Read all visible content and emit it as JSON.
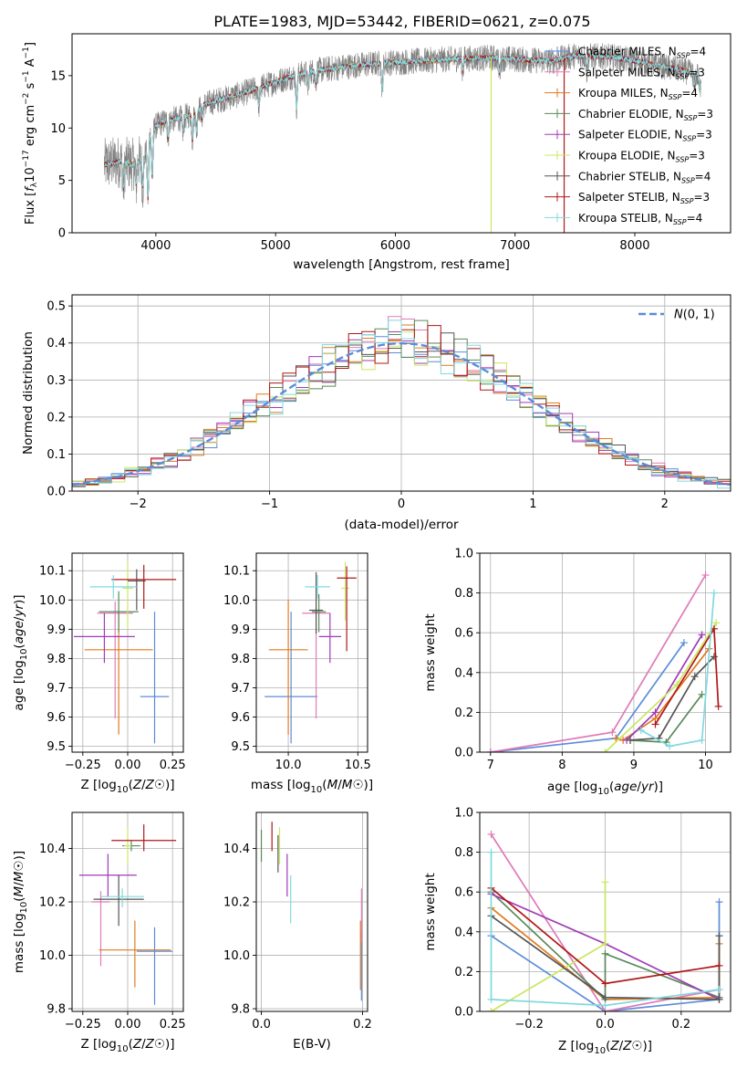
{
  "title": "PLATE=1983, MJD=53442, FIBERID=0621, z=0.075",
  "colors": {
    "Chabrier MILES": "#5b8cd8",
    "Salpeter MILES": "#e07ab8",
    "Kroupa MILES": "#e07a1f",
    "Chabrier ELODIE": "#5a8a5a",
    "Salpeter ELODIE": "#a03ab8",
    "Kroupa ELODIE": "#c8e860",
    "Chabrier STELIB": "#555555",
    "Salpeter STELIB": "#b01818",
    "Kroupa STELIB": "#80d8e0",
    "data": "#808080",
    "normal": "#5b8cd8"
  },
  "chart_data": [
    {
      "type": "line",
      "panel": "spectrum",
      "xlabel": "wavelength [Angstrom, rest frame]",
      "ylabel": "Flux [fλ10⁻¹⁷ erg cm⁻² s⁻¹ A⁻¹]",
      "xlim": [
        3300,
        8800
      ],
      "ylim": [
        0,
        19
      ],
      "xticks": [
        4000,
        5000,
        6000,
        7000,
        8000
      ],
      "yticks": [
        0,
        5,
        10,
        15
      ],
      "grid": false,
      "legend_position": "top-right",
      "legend": [
        {
          "prefix": "Chabrier MILES, N",
          "sub": "SSP",
          "suffix": "=4"
        },
        {
          "prefix": "Salpeter MILES, N",
          "sub": "SSP",
          "suffix": "=3"
        },
        {
          "prefix": "Kroupa MILES, N",
          "sub": "SSP",
          "suffix": "=4"
        },
        {
          "prefix": "Chabrier ELODIE, N",
          "sub": "SSP",
          "suffix": "=3"
        },
        {
          "prefix": "Salpeter ELODIE, N",
          "sub": "SSP",
          "suffix": "=3"
        },
        {
          "prefix": "Kroupa ELODIE, N",
          "sub": "SSP",
          "suffix": "=3"
        },
        {
          "prefix": "Chabrier STELIB, N",
          "sub": "SSP",
          "suffix": "=4"
        },
        {
          "prefix": "Salpeter STELIB, N",
          "sub": "SSP",
          "suffix": "=3"
        },
        {
          "prefix": "Kroupa STELIB, N",
          "sub": "SSP",
          "suffix": "=4"
        }
      ],
      "continuum": [
        [
          3570,
          6.5
        ],
        [
          3700,
          6.8
        ],
        [
          3800,
          6.5
        ],
        [
          3900,
          7.0
        ],
        [
          3950,
          9.5
        ],
        [
          4000,
          10.2
        ],
        [
          4100,
          10.8
        ],
        [
          4200,
          10.9
        ],
        [
          4300,
          11.3
        ],
        [
          4400,
          12.2
        ],
        [
          4500,
          12.6
        ],
        [
          4700,
          13.2
        ],
        [
          4900,
          14.0
        ],
        [
          5100,
          14.8
        ],
        [
          5300,
          15.4
        ],
        [
          5600,
          15.9
        ],
        [
          5900,
          16.2
        ],
        [
          6200,
          16.4
        ],
        [
          6500,
          16.6
        ],
        [
          6800,
          16.7
        ],
        [
          7100,
          16.5
        ],
        [
          7300,
          16.4
        ],
        [
          7500,
          16.9
        ],
        [
          7800,
          16.8
        ],
        [
          8100,
          16.2
        ],
        [
          8400,
          15.5
        ],
        [
          8550,
          15.0
        ]
      ],
      "absorption_lines": [
        [
          3730,
          2.5
        ],
        [
          3835,
          2.0
        ],
        [
          3890,
          2.5
        ],
        [
          3934,
          5.5
        ],
        [
          3969,
          4.5
        ],
        [
          4102,
          1.8
        ],
        [
          4227,
          1.5
        ],
        [
          4305,
          2.5
        ],
        [
          4340,
          2.0
        ],
        [
          4384,
          1.2
        ],
        [
          4861,
          1.8
        ],
        [
          5175,
          3.0
        ],
        [
          5270,
          1.5
        ],
        [
          5335,
          1.2
        ],
        [
          5890,
          2.5
        ],
        [
          6563,
          1.2
        ],
        [
          6870,
          1.5
        ],
        [
          7600,
          1.5
        ],
        [
          8498,
          1.2
        ],
        [
          8542,
          1.5
        ],
        [
          8662,
          1.4
        ]
      ],
      "outliers": [
        {
          "series": "Kroupa ELODIE",
          "x": 6800,
          "y": 0
        },
        {
          "series": "Salpeter STELIB",
          "x": 7410,
          "y": 0
        }
      ]
    },
    {
      "type": "histogram",
      "panel": "residuals",
      "xlabel": "(data-model)/error",
      "ylabel": "Normed distribution",
      "xlim": [
        -2.5,
        2.5
      ],
      "ylim": [
        0,
        0.53
      ],
      "xticks": [
        -2,
        -1,
        0,
        1,
        2
      ],
      "yticks": [
        0.0,
        0.1,
        0.2,
        0.3,
        0.4,
        0.5
      ],
      "grid": true,
      "legend_position": "top-right",
      "reference_curve": {
        "name": "N(0,1)",
        "sigma": 1.0,
        "amplitude": 0.399
      },
      "bin_width": 0.1,
      "bin_start": -2.5
    },
    {
      "type": "errorbar",
      "panel": "age-vs-Z",
      "xlabel": "Z [log10(Z/Z☉)]",
      "ylabel": "age [log10(age/yr)]",
      "xlim": [
        -0.31,
        0.31
      ],
      "ylim": [
        9.48,
        10.16
      ],
      "xticks": [
        -0.25,
        0.0,
        0.25
      ],
      "yticks": [
        9.5,
        9.6,
        9.7,
        9.8,
        9.9,
        10.0,
        10.1
      ],
      "points": [
        {
          "series": "Chabrier MILES",
          "x": 0.15,
          "xerr": 0.08,
          "y": 9.67,
          "yerr": [
            0.16,
            0.29
          ]
        },
        {
          "series": "Salpeter MILES",
          "x": -0.07,
          "xerr": 0.1,
          "y": 9.955,
          "yerr": [
            0.36,
            0.04
          ]
        },
        {
          "series": "Kroupa MILES",
          "x": -0.05,
          "xerr": 0.19,
          "y": 9.83,
          "yerr": [
            0.29,
            0.13
          ]
        },
        {
          "series": "Chabrier ELODIE",
          "x": -0.05,
          "xerr": 0.11,
          "y": 9.96,
          "yerr": [
            0.07,
            0.07
          ]
        },
        {
          "series": "Salpeter ELODIE",
          "x": -0.13,
          "xerr": 0.17,
          "y": 9.875,
          "yerr": [
            0.09,
            0.08
          ]
        },
        {
          "series": "Kroupa ELODIE",
          "x": 0.0,
          "xerr": 0.03,
          "y": 10.04,
          "yerr": [
            0.14,
            0.09
          ]
        },
        {
          "series": "Chabrier STELIB",
          "x": 0.05,
          "xerr": 0.05,
          "y": 10.065,
          "yerr": [
            0.1,
            0.04
          ]
        },
        {
          "series": "Salpeter STELIB",
          "x": 0.09,
          "xerr": 0.18,
          "y": 10.07,
          "yerr": [
            0.1,
            0.05
          ]
        },
        {
          "series": "Kroupa STELIB",
          "x": -0.08,
          "xerr": 0.13,
          "y": 10.045,
          "yerr": [
            0.04,
            0.04
          ]
        }
      ]
    },
    {
      "type": "errorbar",
      "panel": "age-vs-mass",
      "xlabel": "mass [log10(M/M☉)]",
      "xlim": [
        9.77,
        10.57
      ],
      "ylim": [
        9.48,
        10.16
      ],
      "xticks": [
        10.0,
        10.5
      ],
      "yticks": [
        9.5,
        9.6,
        9.7,
        9.8,
        9.9,
        10.0,
        10.1
      ],
      "points": [
        {
          "series": "Chabrier MILES",
          "x": 10.02,
          "xerr": 0.19,
          "y": 9.67,
          "yerr": [
            0.16,
            0.29
          ]
        },
        {
          "series": "Salpeter MILES",
          "x": 10.2,
          "xerr": 0.1,
          "y": 9.955,
          "yerr": [
            0.36,
            0.04
          ]
        },
        {
          "series": "Kroupa MILES",
          "x": 10.0,
          "xerr": 0.14,
          "y": 9.83,
          "yerr": [
            0.29,
            0.17
          ]
        },
        {
          "series": "Chabrier ELODIE",
          "x": 10.22,
          "xerr": 0.05,
          "y": 9.96,
          "yerr": [
            0.07,
            0.06
          ]
        },
        {
          "series": "Salpeter ELODIE",
          "x": 10.3,
          "xerr": 0.08,
          "y": 9.875,
          "yerr": [
            0.09,
            0.08
          ]
        },
        {
          "series": "Kroupa ELODIE",
          "x": 10.41,
          "xerr": 0.03,
          "y": 10.04,
          "yerr": [
            0.11,
            0.09
          ]
        },
        {
          "series": "Chabrier STELIB",
          "x": 10.2,
          "xerr": 0.05,
          "y": 9.965,
          "yerr": [
            0.08,
            0.13
          ]
        },
        {
          "series": "Salpeter STELIB",
          "x": 10.42,
          "xerr": 0.07,
          "y": 10.075,
          "yerr": [
            0.25,
            0.04
          ]
        },
        {
          "series": "Kroupa STELIB",
          "x": 10.21,
          "xerr": 0.09,
          "y": 10.045,
          "yerr": [
            0.04,
            0.04
          ]
        }
      ]
    },
    {
      "type": "line",
      "panel": "weight-vs-age",
      "xlabel": "age [log10(age/yr)]",
      "ylabel": "mass weight",
      "xlim": [
        6.85,
        10.35
      ],
      "ylim": [
        0,
        1.0
      ],
      "xticks": [
        7,
        8,
        9,
        10
      ],
      "yticks": [
        0.0,
        0.2,
        0.4,
        0.6,
        0.8,
        1.0
      ],
      "grid": true,
      "series": [
        {
          "name": "Chabrier MILES",
          "x": [
            7.0,
            8.75,
            9.7
          ],
          "y": [
            0.0,
            0.07,
            0.55
          ]
        },
        {
          "name": "Salpeter MILES",
          "x": [
            7.0,
            8.7,
            10.0
          ],
          "y": [
            0.0,
            0.1,
            0.89
          ]
        },
        {
          "name": "Kroupa MILES",
          "x": [
            8.75,
            8.85,
            9.3,
            10.05
          ],
          "y": [
            0.07,
            0.06,
            0.17,
            0.52
          ]
        },
        {
          "name": "Chabrier ELODIE",
          "x": [
            8.95,
            9.45,
            9.95
          ],
          "y": [
            0.06,
            0.05,
            0.29
          ]
        },
        {
          "name": "Salpeter ELODIE",
          "x": [
            8.9,
            9.3,
            9.95
          ],
          "y": [
            0.06,
            0.2,
            0.59
          ]
        },
        {
          "name": "Kroupa ELODIE",
          "x": [
            8.6,
            9.6,
            10.15
          ],
          "y": [
            0.0,
            0.34,
            0.65
          ]
        },
        {
          "name": "Chabrier STELIB",
          "x": [
            8.95,
            9.35,
            9.85,
            10.12
          ],
          "y": [
            0.06,
            0.07,
            0.38,
            0.48
          ]
        },
        {
          "name": "Salpeter STELIB",
          "x": [
            9.3,
            10.12,
            10.18
          ],
          "y": [
            0.14,
            0.62,
            0.23
          ]
        },
        {
          "name": "Kroupa STELIB",
          "x": [
            9.1,
            9.5,
            9.95,
            10.12
          ],
          "y": [
            0.11,
            0.03,
            0.06,
            0.8
          ]
        }
      ]
    },
    {
      "type": "errorbar",
      "panel": "mass-vs-Z",
      "xlabel": "Z [log10(Z/Z☉)]",
      "ylabel": "mass [log10(M/M☉)]",
      "xlim": [
        -0.31,
        0.31
      ],
      "ylim": [
        9.79,
        10.535
      ],
      "xticks": [
        -0.25,
        0.0,
        0.25
      ],
      "yticks": [
        9.8,
        10.0,
        10.2,
        10.4
      ],
      "points": [
        {
          "series": "Chabrier MILES",
          "x": 0.15,
          "xerr": 0.1,
          "y": 10.015,
          "yerr": [
            0.2,
            0.09
          ]
        },
        {
          "series": "Salpeter MILES",
          "x": -0.15,
          "xerr": 0.05,
          "y": 10.2,
          "yerr": [
            0.24,
            0.04
          ]
        },
        {
          "series": "Kroupa MILES",
          "x": 0.04,
          "xerr": 0.2,
          "y": 10.02,
          "yerr": [
            0.14,
            0.11
          ]
        },
        {
          "series": "Chabrier ELODIE",
          "x": 0.02,
          "xerr": 0.05,
          "y": 10.41,
          "yerr": [
            0.02,
            0.02
          ]
        },
        {
          "series": "Salpeter ELODIE",
          "x": -0.11,
          "xerr": 0.16,
          "y": 10.3,
          "yerr": [
            0.08,
            0.08
          ]
        },
        {
          "series": "Kroupa ELODIE",
          "x": 0.0,
          "xerr": 0.02,
          "y": 10.41,
          "yerr": [
            0.07,
            0.07
          ]
        },
        {
          "series": "Chabrier STELIB",
          "x": -0.05,
          "xerr": 0.14,
          "y": 10.21,
          "yerr": [
            0.1,
            0.09
          ]
        },
        {
          "series": "Salpeter STELIB",
          "x": 0.09,
          "xerr": 0.18,
          "y": 10.43,
          "yerr": [
            0.04,
            0.06
          ]
        },
        {
          "series": "Kroupa STELIB",
          "x": -0.03,
          "xerr": 0.12,
          "y": 10.22,
          "yerr": [
            0.04,
            0.03
          ]
        }
      ]
    },
    {
      "type": "errorbar",
      "panel": "mass-vs-EBV",
      "xlabel": "E(B-V)",
      "xlim": [
        -0.01,
        0.21
      ],
      "ylim": [
        9.79,
        10.535
      ],
      "xticks": [
        0.0,
        0.2
      ],
      "yticks": [
        9.8,
        10.0,
        10.2,
        10.4
      ],
      "points": [
        {
          "series": "Chabrier MILES",
          "x": 0.198,
          "y": 10.0,
          "yerr": [
            0.17,
            0.09
          ]
        },
        {
          "series": "Salpeter MILES",
          "x": 0.198,
          "y": 10.15,
          "yerr": [
            0.1,
            0.1
          ]
        },
        {
          "series": "Kroupa MILES",
          "x": 0.196,
          "y": 10.02,
          "yerr": [
            0.15,
            0.11
          ]
        },
        {
          "series": "Chabrier ELODIE",
          "x": 0.0,
          "y": 10.41,
          "yerr": [
            0.06,
            0.06
          ]
        },
        {
          "series": "Salpeter ELODIE",
          "x": 0.051,
          "y": 10.3,
          "yerr": [
            0.08,
            0.08
          ]
        },
        {
          "series": "Kroupa ELODIE",
          "x": 0.036,
          "y": 10.41,
          "yerr": [
            0.07,
            0.07
          ]
        },
        {
          "series": "Chabrier STELIB",
          "x": 0.033,
          "y": 10.38,
          "yerr": [
            0.07,
            0.07
          ]
        },
        {
          "series": "Salpeter STELIB",
          "x": 0.021,
          "y": 10.43,
          "yerr": [
            0.04,
            0.07
          ]
        },
        {
          "series": "Kroupa STELIB",
          "x": 0.058,
          "y": 10.21,
          "yerr": [
            0.09,
            0.09
          ]
        }
      ]
    },
    {
      "type": "line",
      "panel": "weight-vs-Z",
      "xlabel": "Z [log10(Z/Z☉)]",
      "ylabel": "mass weight",
      "xlim": [
        -0.33,
        0.33
      ],
      "ylim": [
        0,
        1.0
      ],
      "xticks": [
        -0.2,
        0.0,
        0.2
      ],
      "yticks": [
        0.0,
        0.2,
        0.4,
        0.6,
        0.8,
        1.0
      ],
      "grid": true,
      "series": [
        {
          "name": "Chabrier MILES",
          "x": [
            -0.3,
            0.0,
            0.3,
            0.3
          ],
          "y": [
            0.38,
            0.0,
            0.06,
            0.55
          ]
        },
        {
          "name": "Salpeter MILES",
          "x": [
            -0.3,
            0.0,
            0.3
          ],
          "y": [
            0.89,
            0.0,
            0.11
          ]
        },
        {
          "name": "Kroupa MILES",
          "x": [
            -0.3,
            0.0,
            0.3,
            0.3
          ],
          "y": [
            0.52,
            0.06,
            0.07,
            0.34
          ]
        },
        {
          "name": "Chabrier ELODIE",
          "x": [
            -0.3,
            0.0,
            0.0,
            0.3
          ],
          "y": [
            0.6,
            0.06,
            0.29,
            0.07
          ]
        },
        {
          "name": "Salpeter ELODIE",
          "x": [
            -0.3,
            0.0,
            0.3
          ],
          "y": [
            0.59,
            0.34,
            0.06
          ]
        },
        {
          "name": "Kroupa ELODIE",
          "x": [
            -0.3,
            0.0,
            0.0
          ],
          "y": [
            0.0,
            0.34,
            0.65
          ]
        },
        {
          "name": "Chabrier STELIB",
          "x": [
            -0.3,
            0.0,
            0.3,
            0.3
          ],
          "y": [
            0.48,
            0.07,
            0.06,
            0.38
          ]
        },
        {
          "name": "Salpeter STELIB",
          "x": [
            -0.3,
            0.0,
            0.3
          ],
          "y": [
            0.62,
            0.14,
            0.23
          ]
        },
        {
          "name": "Kroupa STELIB",
          "x": [
            -0.3,
            -0.3,
            0.0,
            0.3
          ],
          "y": [
            0.8,
            0.06,
            0.03,
            0.11
          ]
        }
      ]
    }
  ]
}
